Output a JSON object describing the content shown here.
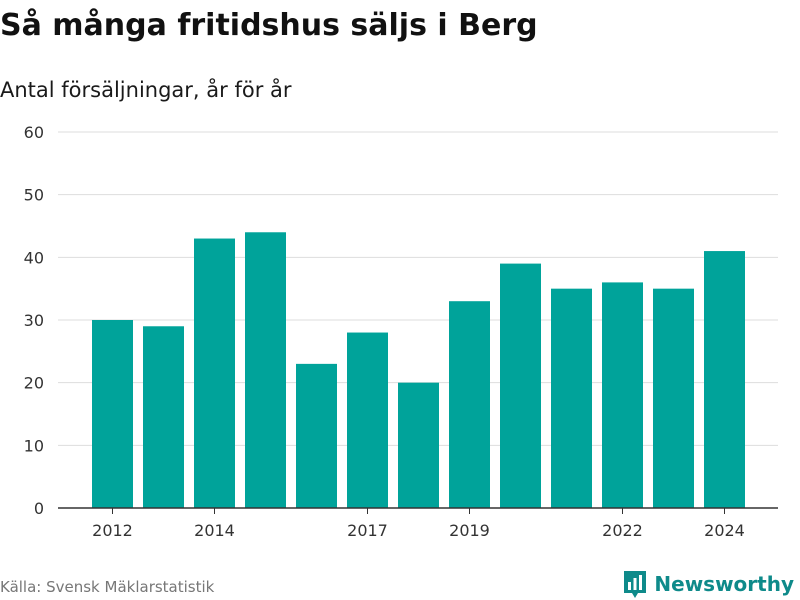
{
  "header": {
    "title": "Så många fritidshus säljs i Berg",
    "subtitle": "Antal försäljningar, år för år"
  },
  "footer": {
    "source": "Källa: Svensk Mäklarstatistik",
    "brand": "Newsworthy",
    "brand_icon": "bar-chart-logo-icon",
    "brand_color": "#0e8a8a"
  },
  "chart_data": {
    "type": "bar",
    "title": "Så många fritidshus säljs i Berg",
    "subtitle": "Antal försäljningar, år för år",
    "xlabel": "",
    "ylabel": "",
    "categories": [
      "2012",
      "2013",
      "2014",
      "2015",
      "2016",
      "2017",
      "2018",
      "2019",
      "2020",
      "2021",
      "2022",
      "2023",
      "2024"
    ],
    "values": [
      30,
      29,
      43,
      44,
      23,
      28,
      20,
      33,
      39,
      35,
      36,
      35,
      41
    ],
    "x_tick_labels": [
      "2012",
      "2014",
      "2017",
      "2019",
      "2022",
      "2024"
    ],
    "y_ticks": [
      0,
      10,
      20,
      30,
      40,
      50,
      60
    ],
    "ylim": [
      0,
      60
    ],
    "bar_color": "#00a39a",
    "grid": true,
    "legend": "none"
  }
}
